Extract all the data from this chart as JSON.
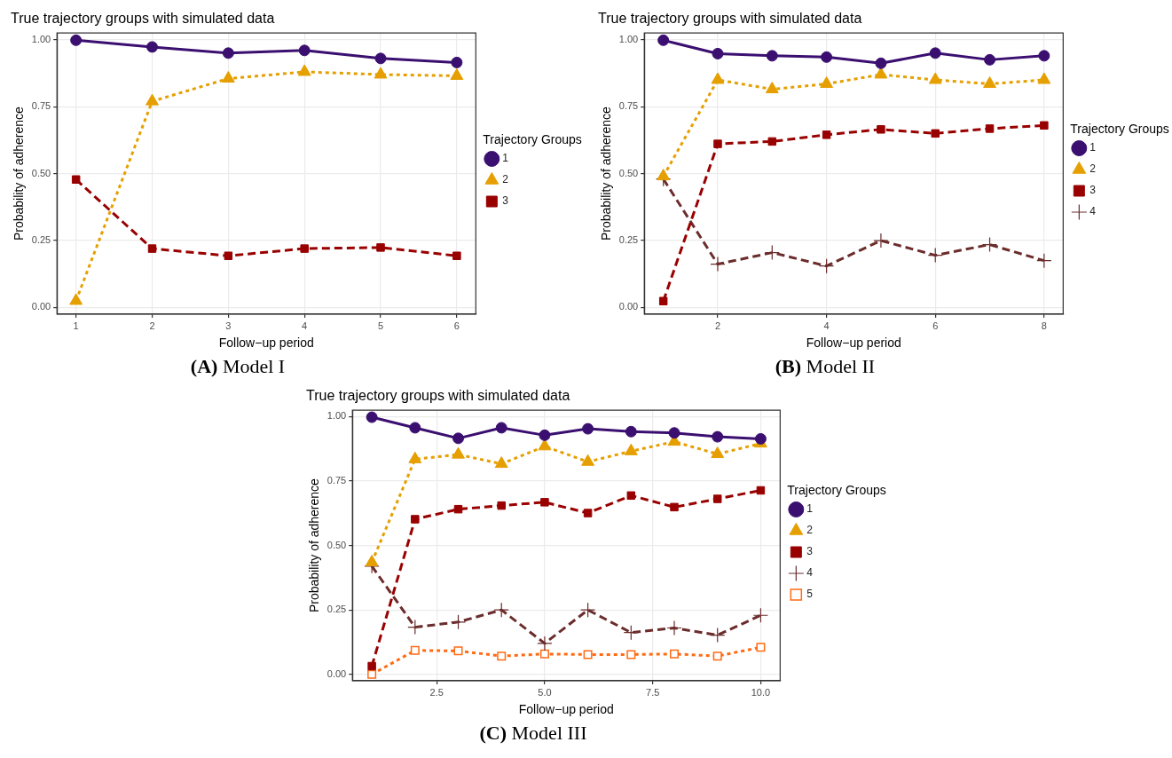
{
  "chart_data": [
    {
      "type": "line",
      "title": "True trajectory groups with simulated data",
      "xlabel": "Follow−up period",
      "ylabel": "Probability of adherence",
      "legend_title": "Trajectory Groups",
      "legend": "right",
      "grid": true,
      "annotations": [
        "(A) Model I"
      ],
      "x": [
        1,
        2,
        3,
        4,
        5,
        6
      ],
      "xlim": [
        0.75,
        6.25
      ],
      "xticks": [
        1,
        2,
        3,
        4,
        5,
        6
      ],
      "ylim": [
        -0.025,
        1.025
      ],
      "yticks": [
        {
          "value": 0,
          "label": "0.00"
        },
        {
          "value": 0.25,
          "label": "0.25"
        },
        {
          "value": 0.5,
          "label": "0.50"
        },
        {
          "value": 0.75,
          "label": "0.75"
        },
        {
          "value": 1,
          "label": "1.00"
        }
      ],
      "series": [
        {
          "name": "1",
          "color": "#3b0f70",
          "marker": "circle",
          "line_style": "solid",
          "values": [
            0.998,
            0.973,
            0.95,
            0.96,
            0.93,
            0.915
          ]
        },
        {
          "name": "2",
          "color": "#e69f00",
          "marker": "triangle",
          "line_style": "dotted",
          "values": [
            0.025,
            0.77,
            0.855,
            0.88,
            0.87,
            0.865
          ]
        },
        {
          "name": "3",
          "color": "#990000",
          "marker": "square",
          "line_style": "dashed",
          "values": [
            0.478,
            0.22,
            0.193,
            0.22,
            0.224,
            0.193
          ]
        }
      ]
    },
    {
      "type": "line",
      "title": "True trajectory groups with simulated data",
      "xlabel": "Follow−up period",
      "ylabel": "Probability of adherence",
      "legend_title": "Trajectory Groups",
      "legend": "right",
      "grid": true,
      "annotations": [
        "(B) Model II"
      ],
      "x": [
        1,
        2,
        3,
        4,
        5,
        6,
        7,
        8
      ],
      "xlim": [
        0.65,
        8.35
      ],
      "xticks": [
        2,
        4,
        6,
        8
      ],
      "ylim": [
        -0.025,
        1.025
      ],
      "yticks": [
        {
          "value": 0,
          "label": "0.00"
        },
        {
          "value": 0.25,
          "label": "0.25"
        },
        {
          "value": 0.5,
          "label": "0.50"
        },
        {
          "value": 0.75,
          "label": "0.75"
        },
        {
          "value": 1,
          "label": "1.00"
        }
      ],
      "series": [
        {
          "name": "1",
          "color": "#3b0f70",
          "marker": "circle",
          "line_style": "solid",
          "values": [
            0.998,
            0.948,
            0.94,
            0.935,
            0.912,
            0.95,
            0.925,
            0.94
          ]
        },
        {
          "name": "2",
          "color": "#e69f00",
          "marker": "triangle",
          "line_style": "dotted",
          "values": [
            0.49,
            0.85,
            0.815,
            0.835,
            0.87,
            0.85,
            0.835,
            0.85
          ]
        },
        {
          "name": "3",
          "color": "#990000",
          "marker": "square",
          "line_style": "dashed",
          "values": [
            0.024,
            0.611,
            0.62,
            0.645,
            0.665,
            0.65,
            0.668,
            0.68
          ]
        },
        {
          "name": "4",
          "color": "#6b2c2c",
          "marker": "cross",
          "line_style": "dashed",
          "values": [
            0.48,
            0.162,
            0.205,
            0.155,
            0.25,
            0.195,
            0.235,
            0.175
          ]
        }
      ]
    },
    {
      "type": "line",
      "title": "True trajectory groups with simulated data",
      "xlabel": "Follow−up period",
      "ylabel": "Probability of adherence",
      "legend_title": "Trajectory Groups",
      "legend": "right",
      "grid": true,
      "annotations": [
        "(C) Model III"
      ],
      "x": [
        1,
        2,
        3,
        4,
        5,
        6,
        7,
        8,
        9,
        10
      ],
      "xlim": [
        0.55,
        10.45
      ],
      "xticks": [
        {
          "value": 2.5,
          "label": "2.5"
        },
        {
          "value": 5,
          "label": "5.0"
        },
        {
          "value": 7.5,
          "label": "7.5"
        },
        {
          "value": 10,
          "label": "10.0"
        }
      ],
      "ylim": [
        -0.025,
        1.025
      ],
      "yticks": [
        {
          "value": 0,
          "label": "0.00"
        },
        {
          "value": 0.25,
          "label": "0.25"
        },
        {
          "value": 0.5,
          "label": "0.50"
        },
        {
          "value": 0.75,
          "label": "0.75"
        },
        {
          "value": 1,
          "label": "1.00"
        }
      ],
      "series": [
        {
          "name": "1",
          "color": "#3b0f70",
          "marker": "circle",
          "line_style": "solid",
          "values": [
            0.998,
            0.957,
            0.916,
            0.957,
            0.928,
            0.953,
            0.942,
            0.937,
            0.922,
            0.914
          ]
        },
        {
          "name": "2",
          "color": "#e69f00",
          "marker": "triangle",
          "line_style": "dotted",
          "values": [
            0.435,
            0.835,
            0.853,
            0.817,
            0.885,
            0.825,
            0.866,
            0.903,
            0.855,
            0.896
          ]
        },
        {
          "name": "3",
          "color": "#990000",
          "marker": "square",
          "line_style": "dashed",
          "values": [
            0.032,
            0.602,
            0.641,
            0.655,
            0.668,
            0.626,
            0.694,
            0.649,
            0.681,
            0.714
          ]
        },
        {
          "name": "4",
          "color": "#6b2c2c",
          "marker": "cross",
          "line_style": "dashed",
          "values": [
            0.42,
            0.183,
            0.203,
            0.25,
            0.12,
            0.25,
            0.162,
            0.18,
            0.152,
            0.229
          ]
        },
        {
          "name": "5",
          "color": "#ff6a13",
          "marker": "square",
          "line_style": "dotted",
          "values": [
            0.0,
            0.093,
            0.091,
            0.071,
            0.079,
            0.077,
            0.077,
            0.079,
            0.071,
            0.105
          ]
        }
      ]
    }
  ]
}
